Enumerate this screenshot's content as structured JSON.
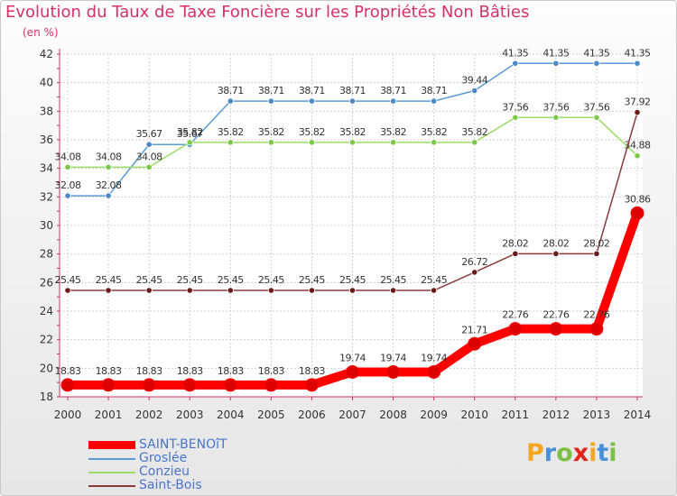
{
  "chart_data": {
    "type": "line",
    "title": "Evolution du Taux de Taxe Foncière sur les Propriétés Non Bâties",
    "ylabel": "(en %)",
    "xlabel": "",
    "ylim": [
      18,
      42
    ],
    "yticks": [
      18,
      20,
      22,
      24,
      26,
      28,
      30,
      32,
      34,
      36,
      38,
      40,
      42
    ],
    "categories": [
      "2000",
      "2001",
      "2002",
      "2003",
      "2004",
      "2005",
      "2006",
      "2007",
      "2008",
      "2009",
      "2010",
      "2011",
      "2012",
      "2013",
      "2014"
    ],
    "grid": true,
    "series": [
      {
        "name": "SAINT-BENOîT",
        "color": "#ff0000",
        "marker_color": "#dd0000",
        "values": [
          18.83,
          18.83,
          18.83,
          18.83,
          18.83,
          18.83,
          18.83,
          19.74,
          19.74,
          19.74,
          21.71,
          22.76,
          22.76,
          22.76,
          30.86
        ],
        "labels": [
          "18.83",
          "18.83",
          "18.83",
          "18.83",
          "18.83",
          "18.83",
          "18.83",
          "19.74",
          "19.74",
          "19.74",
          "21.71",
          "22.76",
          "22.76",
          "22.76",
          "30.86"
        ]
      },
      {
        "name": "Groslée",
        "color": "#5b9bd5",
        "marker_color": "#4a88c8",
        "values": [
          32.08,
          32.08,
          35.67,
          35.67,
          38.71,
          38.71,
          38.71,
          38.71,
          38.71,
          38.71,
          39.44,
          41.35,
          41.35,
          41.35,
          41.35
        ],
        "labels": [
          "32.08",
          "32.08",
          "35.67",
          "35.67",
          "38.71",
          "38.71",
          "38.71",
          "38.71",
          "38.71",
          "38.71",
          "39.44",
          "41.35",
          "41.35",
          "41.35",
          "41.35"
        ]
      },
      {
        "name": "Conzieu",
        "color": "#99dd66",
        "marker_color": "#7cc84a",
        "values": [
          34.08,
          34.08,
          34.08,
          35.82,
          35.82,
          35.82,
          35.82,
          35.82,
          35.82,
          35.82,
          35.82,
          37.56,
          37.56,
          37.56,
          34.88
        ],
        "labels": [
          "34.08",
          "34.08",
          "34.08",
          "35.82",
          "35.82",
          "35.82",
          "35.82",
          "35.82",
          "35.82",
          "35.82",
          "35.82",
          "37.56",
          "37.56",
          "37.56",
          "34.88"
        ]
      },
      {
        "name": "Saint-Bois",
        "color": "#8b3a3a",
        "marker_color": "#6b1a1a",
        "values": [
          25.45,
          25.45,
          25.45,
          25.45,
          25.45,
          25.45,
          25.45,
          25.45,
          25.45,
          25.45,
          26.72,
          28.02,
          28.02,
          28.02,
          37.92
        ],
        "labels": [
          "25.45",
          "25.45",
          "25.45",
          "25.45",
          "25.45",
          "25.45",
          "25.45",
          "25.45",
          "25.45",
          "25.45",
          "26.72",
          "28.02",
          "28.02",
          "28.02",
          "37.92"
        ]
      }
    ]
  },
  "logo": {
    "letters": [
      "P",
      "r",
      "o",
      "x",
      "i",
      "t",
      "i"
    ],
    "colors": [
      "#f5a623",
      "#4a90d9",
      "#7ac143",
      "#e2231a",
      "#f5a623",
      "#4a90d9",
      "#7ac143"
    ]
  }
}
